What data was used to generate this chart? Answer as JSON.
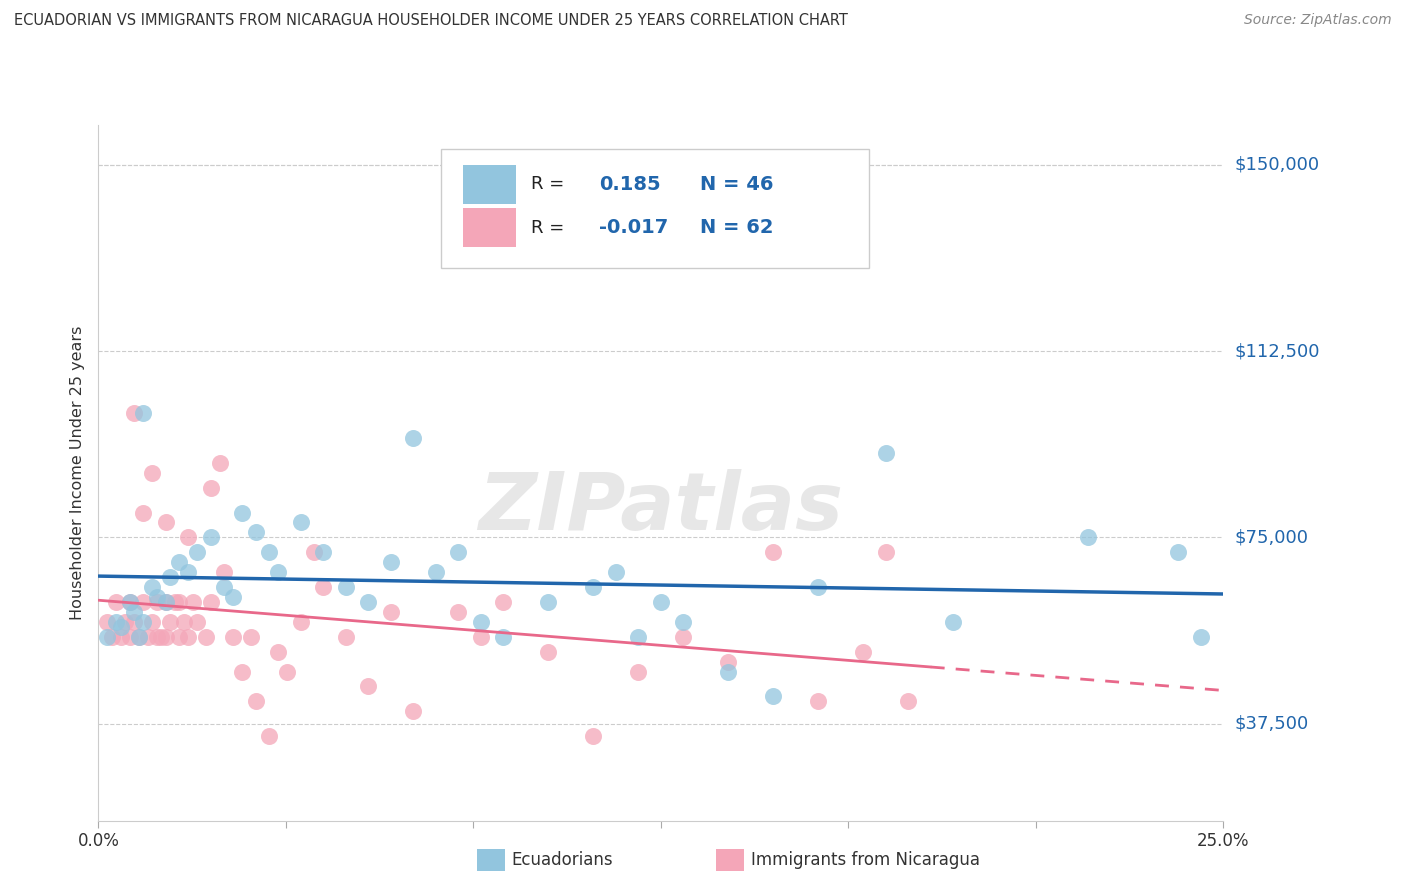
{
  "title": "ECUADORIAN VS IMMIGRANTS FROM NICARAGUA HOUSEHOLDER INCOME UNDER 25 YEARS CORRELATION CHART",
  "source": "Source: ZipAtlas.com",
  "ylabel": "Householder Income Under 25 years",
  "legend_label1": "Ecuadorians",
  "legend_label2": "Immigrants from Nicaragua",
  "r1": 0.185,
  "n1": 46,
  "r2": -0.017,
  "n2": 62,
  "xmin": 0.0,
  "xmax": 0.25,
  "ymin": 18000,
  "ymax": 158000,
  "yticks": [
    37500,
    75000,
    112500,
    150000
  ],
  "ytick_labels": [
    "$37,500",
    "$75,000",
    "$112,500",
    "$150,000"
  ],
  "watermark": "ZIPatlas",
  "color_blue": "#92C5DE",
  "color_pink": "#F4A6B8",
  "line_blue": "#2166AC",
  "line_pink": "#E8688A",
  "line_pink_solid": "#E8688A",
  "blue_scatter_x": [
    0.002,
    0.004,
    0.005,
    0.007,
    0.008,
    0.009,
    0.01,
    0.012,
    0.013,
    0.015,
    0.016,
    0.018,
    0.02,
    0.022,
    0.025,
    0.028,
    0.03,
    0.032,
    0.035,
    0.038,
    0.04,
    0.045,
    0.05,
    0.055,
    0.06,
    0.065,
    0.07,
    0.075,
    0.08,
    0.085,
    0.09,
    0.1,
    0.11,
    0.115,
    0.12,
    0.125,
    0.13,
    0.14,
    0.15,
    0.16,
    0.175,
    0.19,
    0.22,
    0.24,
    0.245,
    0.01
  ],
  "blue_scatter_y": [
    55000,
    58000,
    57000,
    62000,
    60000,
    55000,
    58000,
    65000,
    63000,
    62000,
    67000,
    70000,
    68000,
    72000,
    75000,
    65000,
    63000,
    80000,
    76000,
    72000,
    68000,
    78000,
    72000,
    65000,
    62000,
    70000,
    95000,
    68000,
    72000,
    58000,
    55000,
    62000,
    65000,
    68000,
    55000,
    62000,
    58000,
    48000,
    43000,
    65000,
    92000,
    58000,
    75000,
    72000,
    55000,
    100000
  ],
  "pink_scatter_x": [
    0.002,
    0.003,
    0.004,
    0.005,
    0.006,
    0.007,
    0.007,
    0.008,
    0.009,
    0.01,
    0.011,
    0.012,
    0.013,
    0.013,
    0.014,
    0.015,
    0.015,
    0.016,
    0.017,
    0.018,
    0.018,
    0.019,
    0.02,
    0.021,
    0.022,
    0.024,
    0.025,
    0.027,
    0.028,
    0.03,
    0.032,
    0.034,
    0.035,
    0.038,
    0.04,
    0.042,
    0.045,
    0.048,
    0.05,
    0.055,
    0.06,
    0.065,
    0.07,
    0.08,
    0.085,
    0.09,
    0.1,
    0.11,
    0.12,
    0.13,
    0.14,
    0.15,
    0.16,
    0.17,
    0.18,
    0.008,
    0.01,
    0.012,
    0.015,
    0.02,
    0.025,
    0.175
  ],
  "pink_scatter_y": [
    58000,
    55000,
    62000,
    55000,
    58000,
    62000,
    55000,
    58000,
    55000,
    62000,
    55000,
    58000,
    55000,
    62000,
    55000,
    62000,
    55000,
    58000,
    62000,
    55000,
    62000,
    58000,
    55000,
    62000,
    58000,
    55000,
    62000,
    90000,
    68000,
    55000,
    48000,
    55000,
    42000,
    35000,
    52000,
    48000,
    58000,
    72000,
    65000,
    55000,
    45000,
    60000,
    40000,
    60000,
    55000,
    62000,
    52000,
    35000,
    48000,
    55000,
    50000,
    72000,
    42000,
    52000,
    42000,
    100000,
    80000,
    88000,
    78000,
    75000,
    85000,
    72000
  ]
}
